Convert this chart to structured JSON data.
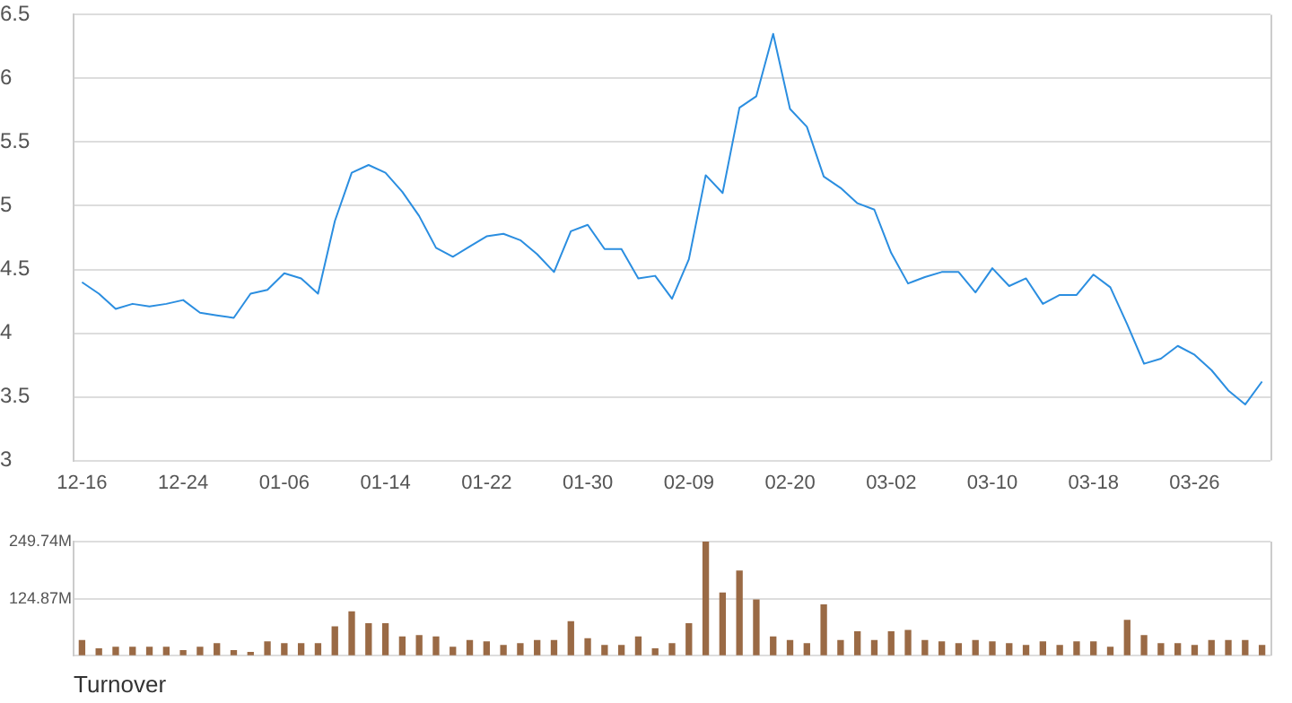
{
  "chart_data": [
    {
      "type": "line",
      "categories": [
        "12-16",
        null,
        null,
        null,
        null,
        null,
        "12-24",
        null,
        null,
        null,
        null,
        null,
        "01-06",
        null,
        null,
        null,
        null,
        null,
        "01-14",
        null,
        null,
        null,
        null,
        null,
        "01-22",
        null,
        null,
        null,
        null,
        null,
        "01-30",
        null,
        null,
        null,
        null,
        null,
        "02-09",
        null,
        null,
        null,
        null,
        null,
        "02-20",
        null,
        null,
        null,
        null,
        null,
        "03-02",
        null,
        null,
        null,
        null,
        null,
        "03-10",
        null,
        null,
        null,
        null,
        null,
        "03-18",
        null,
        null,
        null,
        null,
        null,
        "03-26",
        null,
        null,
        null,
        null
      ],
      "series": [
        {
          "color": "#2b8ee0",
          "values": [
            4.4,
            4.31,
            4.19,
            4.23,
            4.21,
            4.23,
            4.26,
            4.16,
            4.14,
            4.12,
            4.31,
            4.34,
            4.47,
            4.43,
            4.31,
            4.88,
            5.26,
            5.32,
            5.26,
            5.11,
            4.92,
            4.67,
            4.6,
            4.68,
            4.76,
            4.78,
            4.73,
            4.62,
            4.48,
            4.8,
            4.85,
            4.66,
            4.66,
            4.43,
            4.45,
            4.27,
            4.58,
            5.24,
            5.1,
            5.77,
            5.86,
            6.35,
            5.76,
            5.62,
            5.23,
            5.14,
            5.02,
            4.97,
            4.63,
            4.39,
            4.44,
            4.48,
            4.48,
            4.32,
            4.51,
            4.37,
            4.43,
            4.23,
            4.3,
            4.3,
            4.46,
            4.36,
            4.07,
            3.76,
            3.8,
            3.9,
            3.83,
            3.71,
            3.55,
            3.44,
            3.62
          ]
        }
      ],
      "ylim": [
        3,
        6.5
      ],
      "yticks": [
        3,
        3.5,
        4,
        4.5,
        5,
        5.5,
        6,
        6.5
      ],
      "grid": "y",
      "marker": "none"
    },
    {
      "type": "bar",
      "title": "Turnover",
      "categories": [
        null,
        null,
        null,
        null,
        null,
        null,
        null,
        null,
        null,
        null,
        null,
        null,
        null,
        null,
        null,
        null,
        null,
        null,
        null,
        null,
        null,
        null,
        null,
        null,
        null,
        null,
        null,
        null,
        null,
        null,
        null,
        null,
        null,
        null,
        null,
        null,
        null,
        null,
        null,
        null,
        null,
        null,
        null,
        null,
        null,
        null,
        null,
        null,
        null,
        null,
        null,
        null,
        null,
        null,
        null,
        null,
        null,
        null,
        null,
        null,
        null,
        null,
        null,
        null,
        null,
        null,
        null,
        null,
        null,
        null,
        null
      ],
      "series": [
        {
          "color": "#9a6a45",
          "values": [
            33,
            15,
            18,
            18,
            18,
            18,
            11,
            18,
            26,
            11,
            7,
            30,
            26,
            26,
            26,
            63,
            96,
            70,
            70,
            41,
            44,
            41,
            18,
            33,
            30,
            22,
            26,
            33,
            33,
            74,
            37,
            22,
            22,
            41,
            15,
            26,
            70,
            249.7,
            137,
            185,
            122,
            41,
            33,
            26,
            111,
            33,
            52,
            33,
            52,
            55,
            33,
            30,
            26,
            33,
            30,
            26,
            22,
            30,
            22,
            30,
            30,
            18,
            77,
            44,
            26,
            26,
            22,
            33,
            33,
            33,
            22
          ]
        }
      ],
      "ylim": [
        0,
        249.74
      ],
      "yticks": [
        {
          "value": 0,
          "label": null
        },
        {
          "value": 124.87,
          "label": "124.87M"
        },
        {
          "value": 249.74,
          "label": "249.74M"
        }
      ],
      "grid": "y",
      "tick_labels": "y"
    }
  ]
}
